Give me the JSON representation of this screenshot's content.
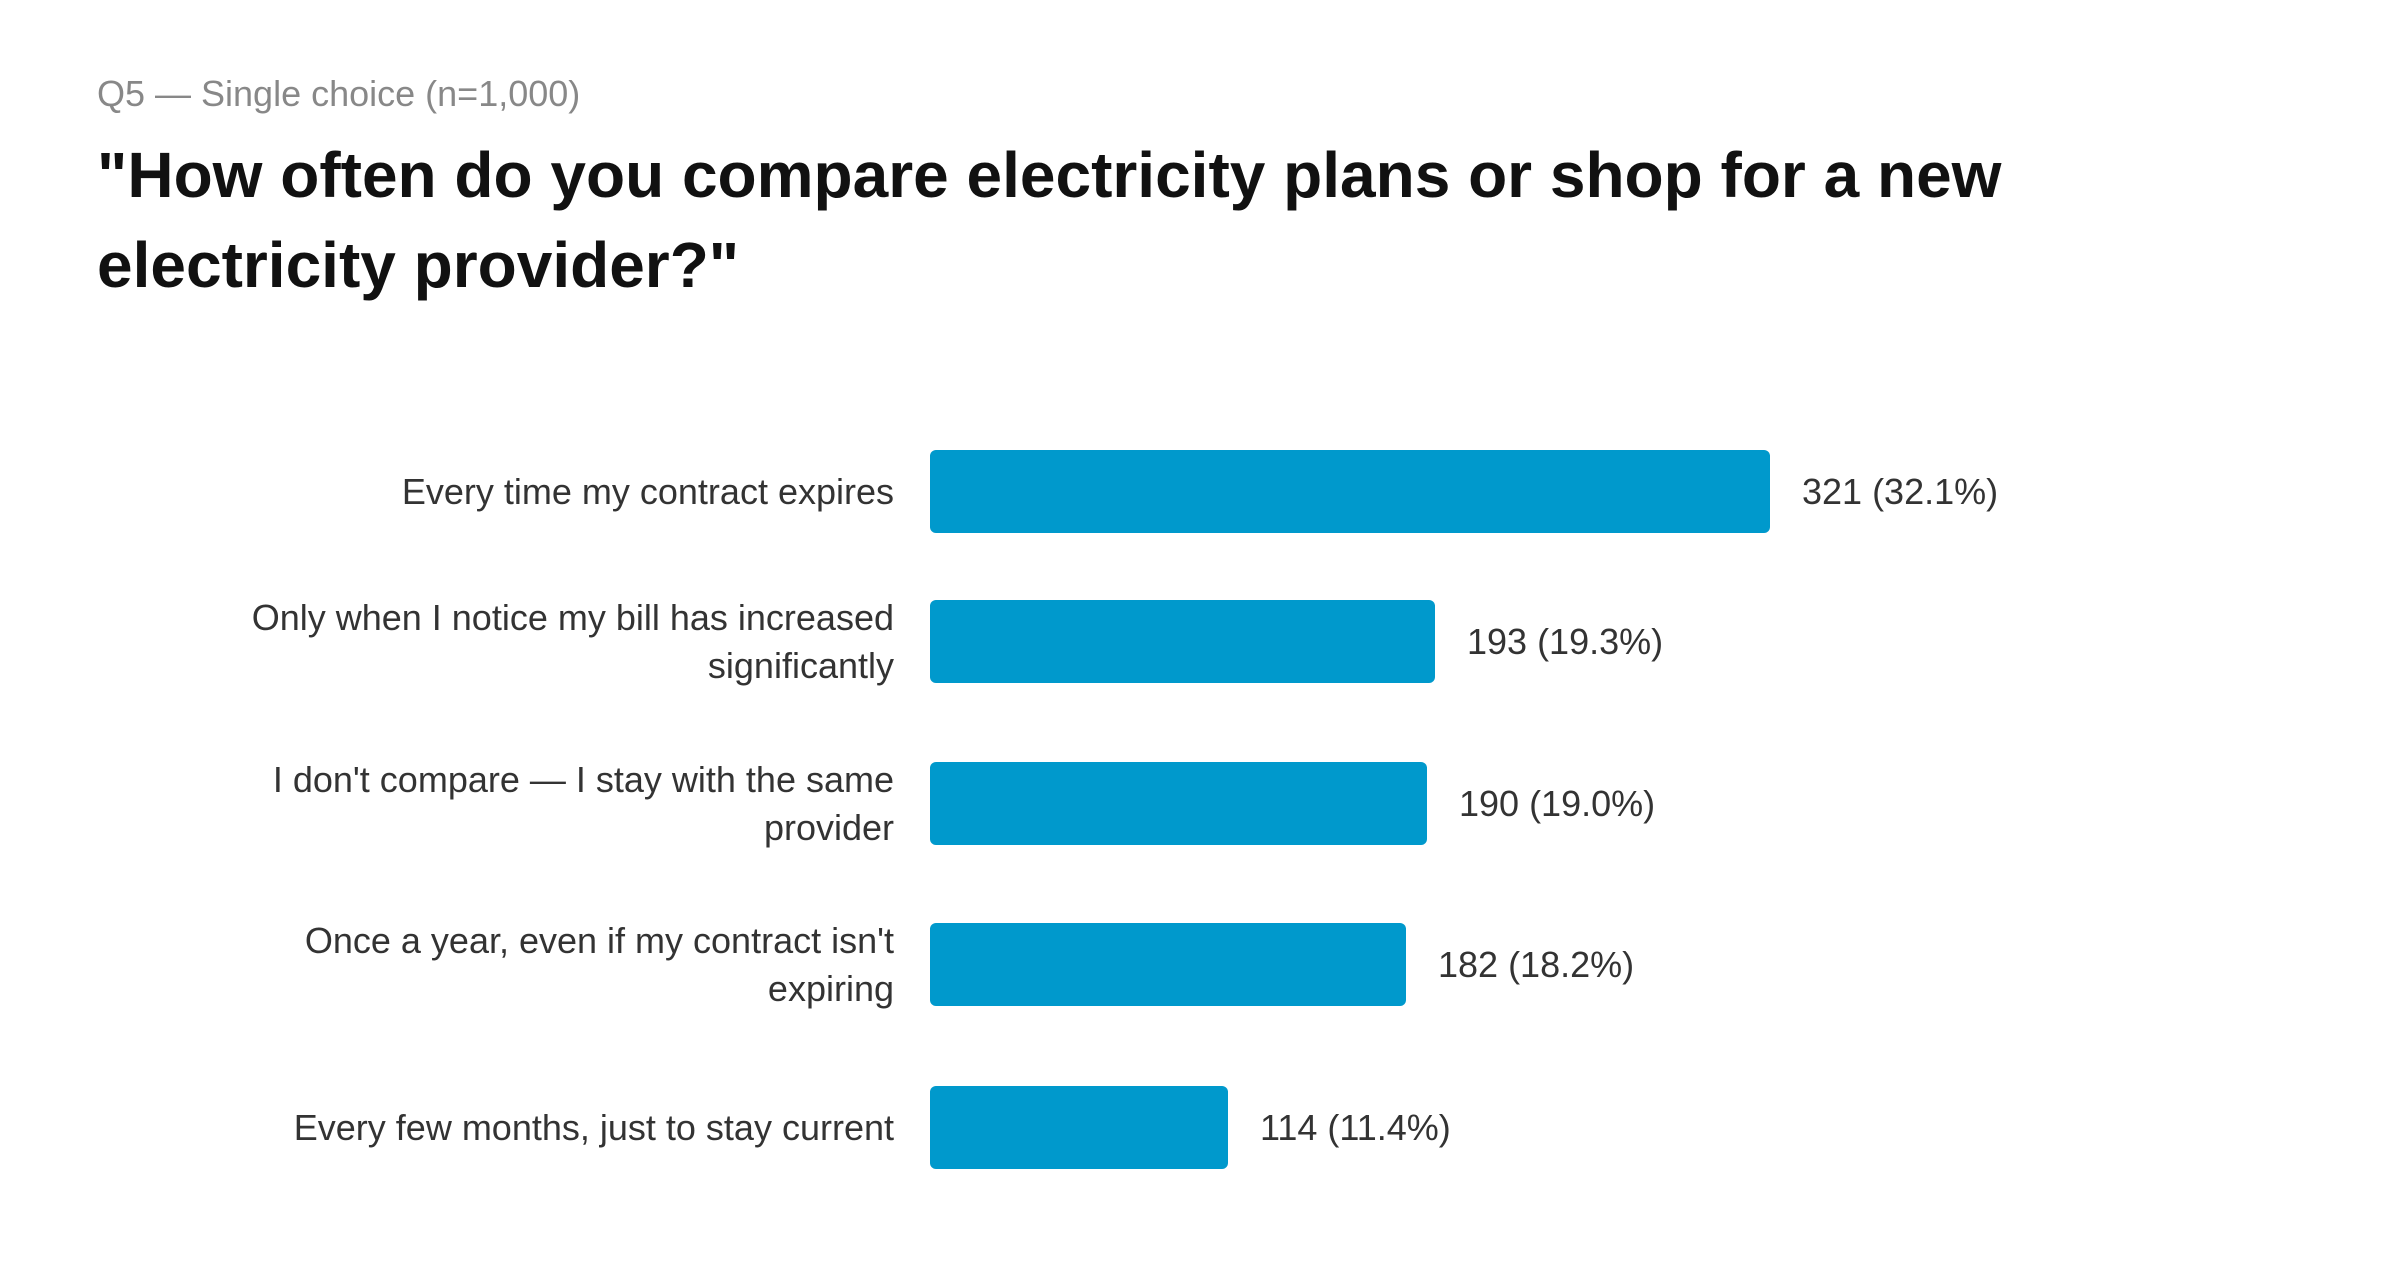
{
  "header": {
    "subtitle": "Q5 — Single choice (n=1,000)",
    "title": "\"How often do you compare electricity plans or shop for a new electricity provider?\""
  },
  "colors": {
    "bar": "#0099cc",
    "title": "#111111",
    "subtitle": "#888888",
    "label": "#333333"
  },
  "rows": [
    {
      "label": "Every time my contract expires",
      "value_label": "321 (32.1%)"
    },
    {
      "label": "Only when I notice my bill has increased significantly",
      "value_label": "193 (19.3%)"
    },
    {
      "label": "I don't compare — I stay with the same provider",
      "value_label": "190 (19.0%)"
    },
    {
      "label": "Once a year, even if my contract isn't expiring",
      "value_label": "182 (18.2%)"
    },
    {
      "label": "Every few months, just to stay current",
      "value_label": "114 (11.4%)"
    }
  ],
  "chart_data": {
    "type": "bar",
    "orientation": "horizontal",
    "title": "\"How often do you compare electricity plans or shop for a new electricity provider?\"",
    "subtitle": "Q5 — Single choice (n=1,000)",
    "categories": [
      "Every time my contract expires",
      "Only when I notice my bill has increased significantly",
      "I don't compare — I stay with the same provider",
      "Once a year, even if my contract isn't expiring",
      "Every few months, just to stay current"
    ],
    "values": [
      321,
      193,
      190,
      182,
      114
    ],
    "percentages": [
      32.1,
      19.3,
      19.0,
      18.2,
      11.4
    ],
    "data_labels": [
      "321 (32.1%)",
      "193 (19.3%)",
      "190 (19.0%)",
      "182 (18.2%)",
      "114 (11.4%)"
    ],
    "xlabel": "",
    "ylabel": "",
    "n": 1000,
    "grid": false,
    "legend": null,
    "bar_color": "#0099cc"
  }
}
